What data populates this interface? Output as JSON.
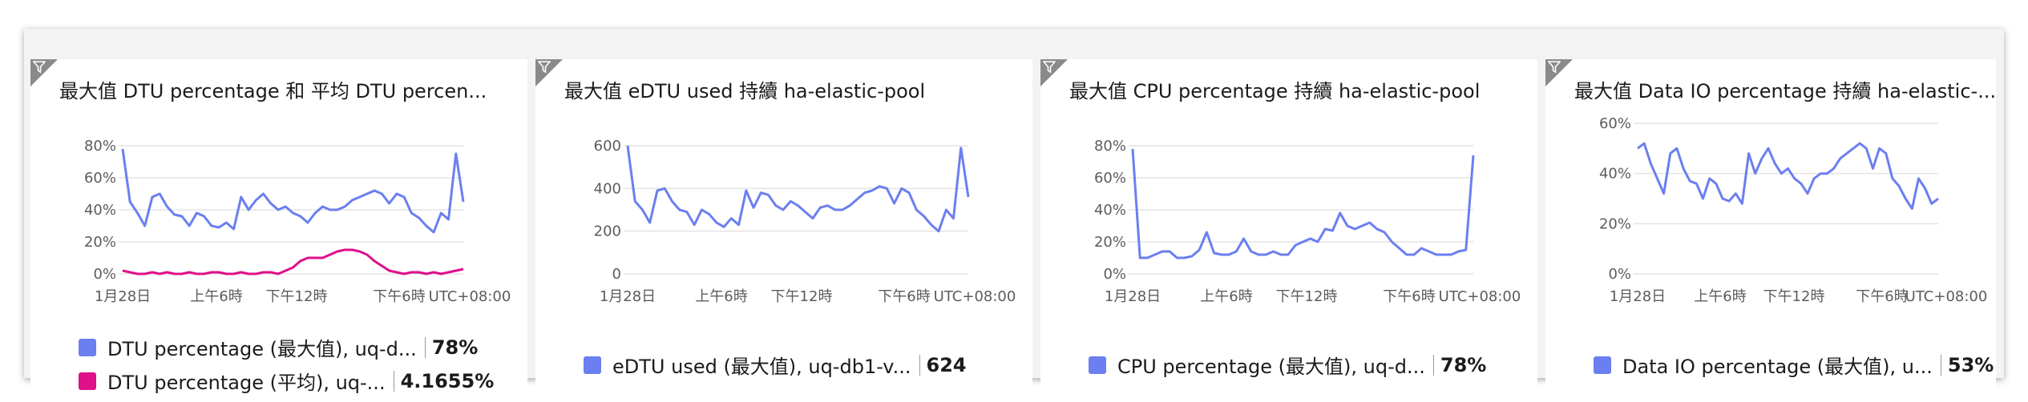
{
  "colors": {
    "series_blue": "#6b7ff0",
    "series_pink": "#e00f8a",
    "grid": "#e4e4e4",
    "axis_text": "#5c5c5c"
  },
  "tiles": [
    {
      "title": "最大值 DTU percentage 和 平均 DTU percen...",
      "legend": [
        {
          "name": "DTU percentage (最大值), uq-d...",
          "value": "78%",
          "color": "#6b7ff0"
        },
        {
          "name": "DTU percentage (平均), uq-...",
          "value": "4.1655%",
          "color": "#e00f8a"
        }
      ]
    },
    {
      "title": "最大值 eDTU used 持續 ha-elastic-pool",
      "legend": [
        {
          "name": "eDTU used (最大值), uq-db1-v...",
          "value": "624",
          "color": "#6b7ff0"
        }
      ]
    },
    {
      "title": "最大值 CPU percentage 持續 ha-elastic-pool",
      "legend": [
        {
          "name": "CPU percentage (最大值), uq-d...",
          "value": "78%",
          "color": "#6b7ff0"
        }
      ]
    },
    {
      "title": "最大值 Data IO percentage 持續 ha-elastic-...",
      "legend": [
        {
          "name": "Data IO percentage (最大值), u...",
          "value": "53%",
          "color": "#6b7ff0"
        }
      ]
    }
  ],
  "chart_data": [
    {
      "type": "line",
      "y_ticks": [
        "80%",
        "60%",
        "40%",
        "20%",
        "0%"
      ],
      "ylim": [
        0,
        80
      ],
      "x_ticks": [
        "1月28日",
        "上午6時",
        "下午12時",
        "下午6時"
      ],
      "timezone_label": "UTC+08:00",
      "series": [
        {
          "name": "DTU percentage (最大值), uq-d...",
          "color": "#6b7ff0",
          "values": [
            78,
            45,
            38,
            30,
            48,
            50,
            42,
            37,
            36,
            30,
            38,
            36,
            30,
            29,
            32,
            28,
            48,
            40,
            46,
            50,
            44,
            40,
            42,
            38,
            36,
            32,
            38,
            42,
            40,
            40,
            42,
            46,
            48,
            50,
            52,
            50,
            44,
            50,
            48,
            38,
            35,
            30,
            26,
            38,
            34,
            75,
            45
          ]
        },
        {
          "name": "DTU percentage (平均), uq-...",
          "color": "#e00f8a",
          "values": [
            2,
            1,
            0,
            0,
            1,
            0,
            1,
            0,
            0,
            1,
            0,
            0,
            1,
            1,
            0,
            0,
            1,
            0,
            0,
            1,
            1,
            0,
            2,
            4,
            8,
            10,
            10,
            10,
            12,
            14,
            15,
            15,
            14,
            12,
            8,
            5,
            2,
            1,
            0,
            1,
            1,
            0,
            1,
            0,
            1,
            2,
            3
          ]
        }
      ]
    },
    {
      "type": "line",
      "y_ticks": [
        "600",
        "400",
        "200",
        "0"
      ],
      "ylim": [
        0,
        600
      ],
      "x_ticks": [
        "1月28日",
        "上午6時",
        "下午12時",
        "下午6時"
      ],
      "timezone_label": "UTC+08:00",
      "series": [
        {
          "name": "eDTU used (最大值), uq-db1-v...",
          "color": "#6b7ff0",
          "values": [
            600,
            340,
            300,
            240,
            390,
            400,
            340,
            300,
            290,
            230,
            300,
            280,
            240,
            220,
            260,
            230,
            390,
            310,
            380,
            370,
            320,
            300,
            340,
            320,
            290,
            260,
            310,
            320,
            300,
            300,
            320,
            350,
            380,
            390,
            410,
            400,
            330,
            400,
            380,
            300,
            270,
            230,
            200,
            300,
            260,
            590,
            360
          ]
        }
      ]
    },
    {
      "type": "line",
      "y_ticks": [
        "80%",
        "60%",
        "40%",
        "20%",
        "0%"
      ],
      "ylim": [
        0,
        80
      ],
      "x_ticks": [
        "1月28日",
        "上午6時",
        "下午12時",
        "下午6時"
      ],
      "timezone_label": "UTC+08:00",
      "series": [
        {
          "name": "CPU percentage (最大值), uq-d...",
          "color": "#6b7ff0",
          "values": [
            78,
            10,
            10,
            12,
            14,
            14,
            10,
            10,
            11,
            15,
            26,
            13,
            12,
            12,
            14,
            22,
            14,
            12,
            12,
            14,
            12,
            12,
            18,
            20,
            22,
            20,
            28,
            27,
            38,
            30,
            28,
            30,
            32,
            28,
            26,
            20,
            16,
            12,
            12,
            16,
            14,
            12,
            12,
            12,
            14,
            15,
            74
          ]
        }
      ]
    },
    {
      "type": "line",
      "y_ticks": [
        "60%",
        "40%",
        "20%",
        "0%"
      ],
      "ylim": [
        0,
        60
      ],
      "x_ticks": [
        "1月28日",
        "上午6時",
        "下午12時",
        "下午6時"
      ],
      "timezone_label": "UTC+08:00",
      "series": [
        {
          "name": "Data IO percentage (最大值), u...",
          "color": "#6b7ff0",
          "values": [
            50,
            52,
            44,
            38,
            32,
            48,
            50,
            42,
            37,
            36,
            30,
            38,
            36,
            30,
            29,
            32,
            28,
            48,
            40,
            46,
            50,
            44,
            40,
            42,
            38,
            36,
            32,
            38,
            40,
            40,
            42,
            46,
            48,
            50,
            52,
            50,
            42,
            50,
            48,
            38,
            35,
            30,
            26,
            38,
            34,
            28,
            30
          ]
        }
      ]
    }
  ]
}
